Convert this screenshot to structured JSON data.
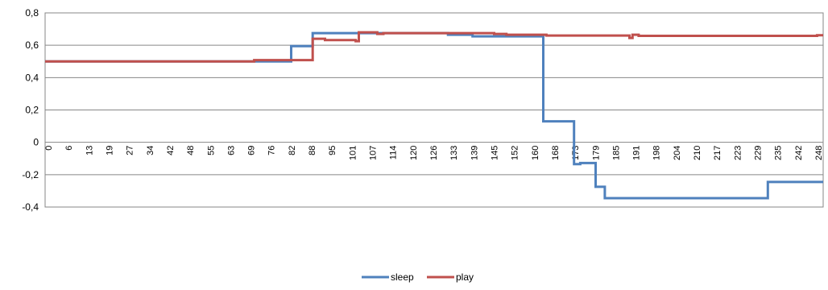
{
  "chart_data": {
    "type": "line",
    "title": "",
    "xlabel": "",
    "ylabel": "",
    "ylim": [
      -0.4,
      0.8
    ],
    "yticks": [
      -0.4,
      -0.2,
      0,
      0.2,
      0.4,
      0.6,
      0.8
    ],
    "ytick_labels": [
      "-0,4",
      "-0,2",
      "0",
      "0,2",
      "0,4",
      "0,6",
      "0,8"
    ],
    "xlim": [
      0,
      253
    ],
    "xtick_labels": [
      "0",
      "6",
      "13",
      "19",
      "27",
      "34",
      "42",
      "48",
      "55",
      "63",
      "69",
      "76",
      "82",
      "88",
      "95",
      "101",
      "107",
      "114",
      "120",
      "126",
      "133",
      "139",
      "145",
      "152",
      "160",
      "168",
      "173",
      "179",
      "185",
      "191",
      "198",
      "204",
      "210",
      "217",
      "223",
      "229",
      "235",
      "242",
      "248"
    ],
    "grid": "horizontal",
    "legend_position": "bottom",
    "series": [
      {
        "name": "sleep",
        "color": "#4F81BD",
        "points": [
          [
            0,
            0.5
          ],
          [
            80,
            0.5
          ],
          [
            80,
            0.595
          ],
          [
            87,
            0.595
          ],
          [
            87,
            0.675
          ],
          [
            131,
            0.675
          ],
          [
            131,
            0.665
          ],
          [
            139,
            0.665
          ],
          [
            139,
            0.655
          ],
          [
            162,
            0.655
          ],
          [
            162,
            0.13
          ],
          [
            172,
            0.13
          ],
          [
            172,
            -0.135
          ],
          [
            174,
            -0.135
          ],
          [
            174,
            -0.128
          ],
          [
            179,
            -0.128
          ],
          [
            179,
            -0.275
          ],
          [
            182,
            -0.275
          ],
          [
            182,
            -0.345
          ],
          [
            235,
            -0.345
          ],
          [
            235,
            -0.245
          ],
          [
            253,
            -0.245
          ]
        ]
      },
      {
        "name": "play",
        "color": "#C0504D",
        "points": [
          [
            0,
            0.5
          ],
          [
            68,
            0.5
          ],
          [
            68,
            0.508
          ],
          [
            87,
            0.508
          ],
          [
            87,
            0.64
          ],
          [
            91,
            0.64
          ],
          [
            91,
            0.632
          ],
          [
            101,
            0.632
          ],
          [
            101,
            0.625
          ],
          [
            102,
            0.625
          ],
          [
            102,
            0.68
          ],
          [
            108,
            0.68
          ],
          [
            108,
            0.67
          ],
          [
            110,
            0.67
          ],
          [
            110,
            0.675
          ],
          [
            146,
            0.675
          ],
          [
            146,
            0.67
          ],
          [
            150,
            0.67
          ],
          [
            150,
            0.665
          ],
          [
            163,
            0.665
          ],
          [
            163,
            0.66
          ],
          [
            190,
            0.66
          ],
          [
            190,
            0.645
          ],
          [
            191,
            0.645
          ],
          [
            191,
            0.665
          ],
          [
            193,
            0.665
          ],
          [
            193,
            0.658
          ],
          [
            251,
            0.658
          ],
          [
            251,
            0.662
          ],
          [
            253,
            0.662
          ]
        ]
      }
    ]
  }
}
